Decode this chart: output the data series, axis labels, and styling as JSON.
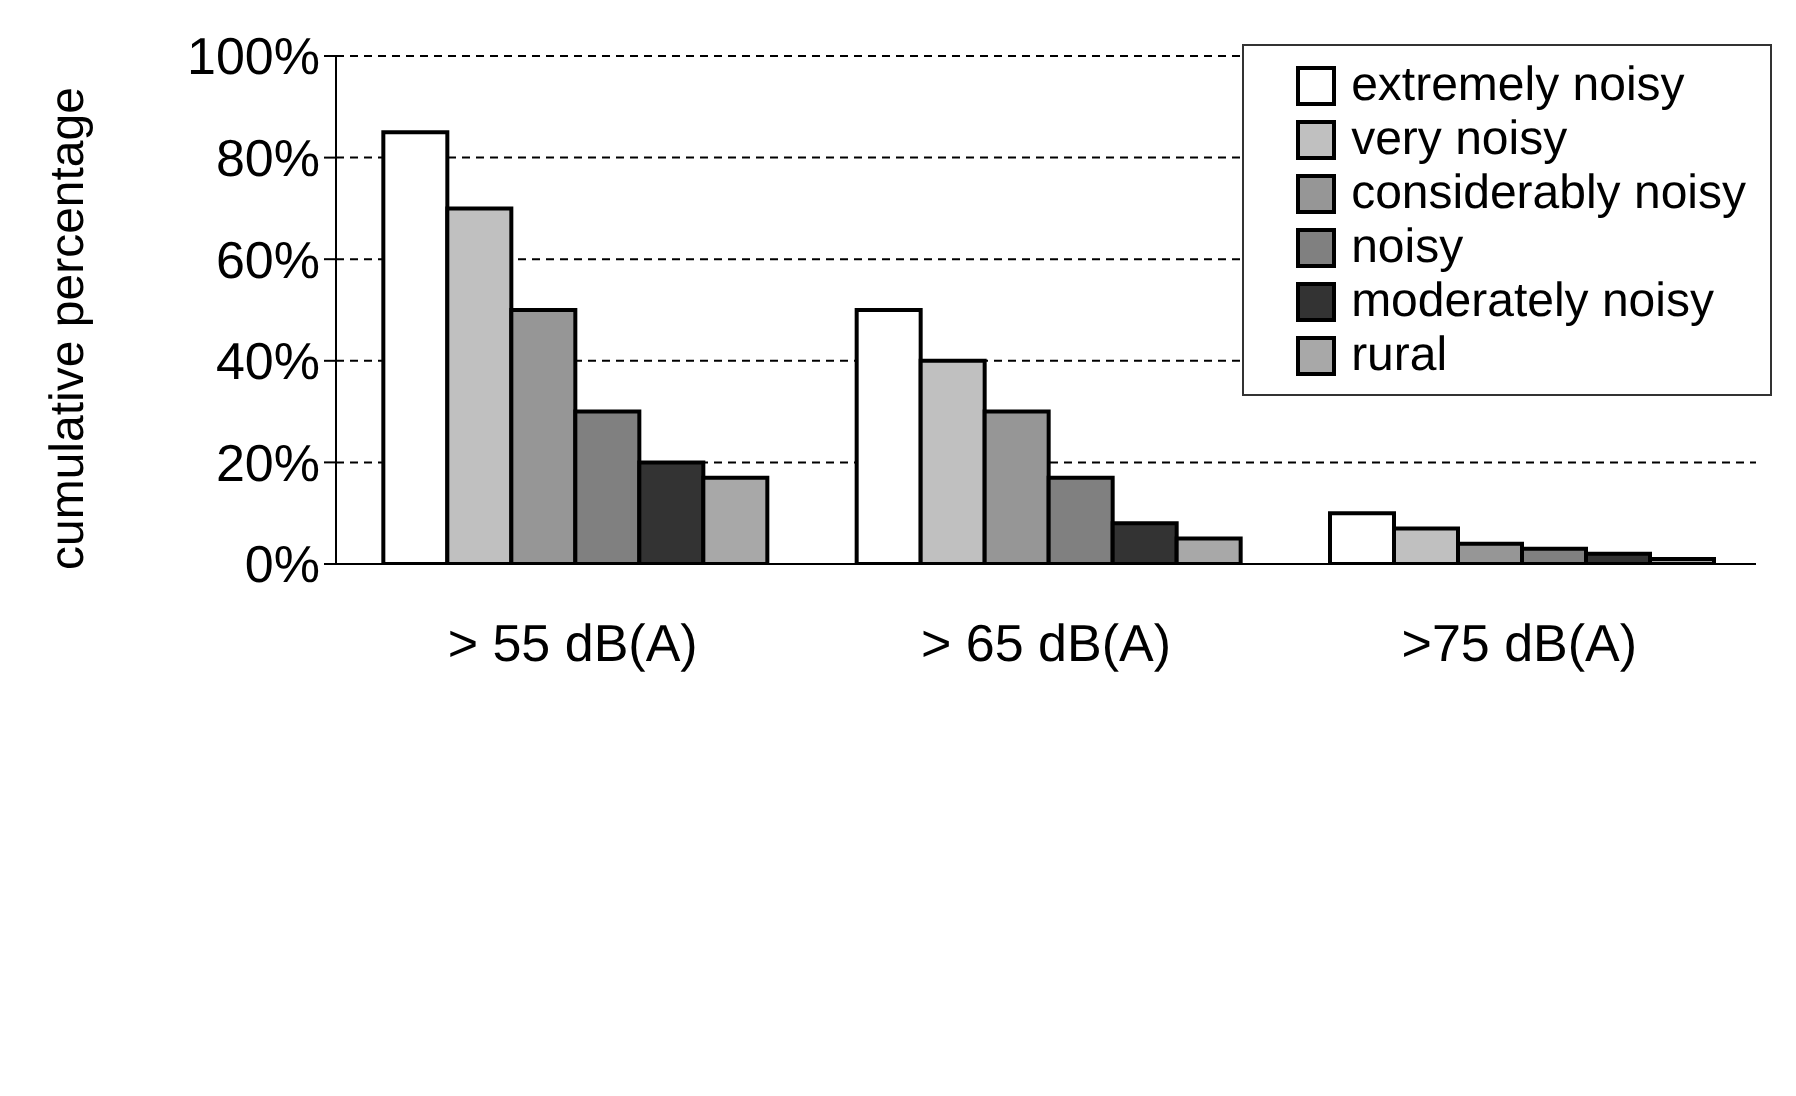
{
  "chart_data": {
    "type": "bar",
    "ylabel": "cumulative percentage",
    "categories": [
      "> 55 dB(A)",
      "> 65 dB(A)",
      ">75 dB(A)"
    ],
    "series": [
      {
        "name": "extremely noisy",
        "color": "#ffffff",
        "values": [
          85,
          50,
          10
        ]
      },
      {
        "name": "very noisy",
        "color": "#c0c0c0",
        "values": [
          70,
          40,
          7
        ]
      },
      {
        "name": "considerably noisy",
        "color": "#969696",
        "values": [
          50,
          30,
          4
        ]
      },
      {
        "name": "noisy",
        "color": "#808080",
        "values": [
          30,
          17,
          3
        ]
      },
      {
        "name": "moderately noisy",
        "color": "#333333",
        "values": [
          20,
          8,
          2
        ]
      },
      {
        "name": "rural",
        "color": "#a8a8a8",
        "values": [
          17,
          5,
          1
        ]
      }
    ],
    "ylim": [
      0,
      100
    ],
    "yticks": [
      {
        "value": 0,
        "label": "0%"
      },
      {
        "value": 20,
        "label": "20%"
      },
      {
        "value": 40,
        "label": "40%"
      },
      {
        "value": 60,
        "label": "60%"
      },
      {
        "value": 80,
        "label": "80%"
      },
      {
        "value": 100,
        "label": "100%"
      }
    ],
    "grid": "y",
    "legend": "top right"
  }
}
